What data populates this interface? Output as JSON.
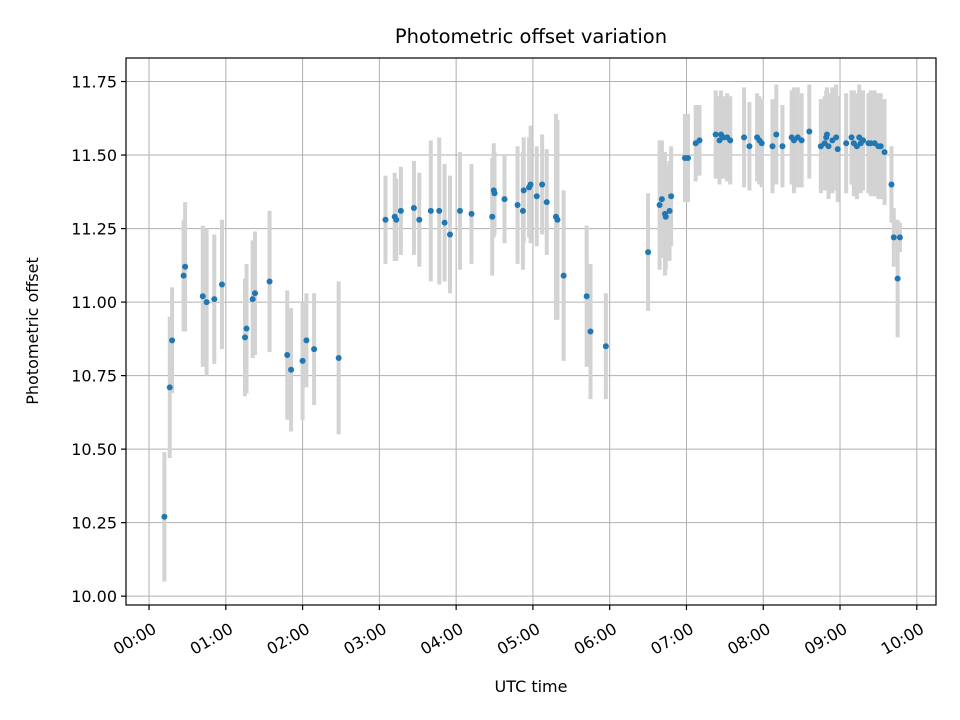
{
  "chart_data": {
    "type": "scatter",
    "title": "Photometric offset variation",
    "xlabel": "UTC time",
    "ylabel": "Photometric offset",
    "x_unit": "hours",
    "xlim": [
      -0.3,
      10.25
    ],
    "ylim": [
      9.97,
      11.83
    ],
    "x_ticks": [
      0,
      1,
      2,
      3,
      4,
      5,
      6,
      7,
      8,
      9,
      10
    ],
    "x_tick_labels": [
      "00:00",
      "01:00",
      "02:00",
      "03:00",
      "04:00",
      "05:00",
      "06:00",
      "07:00",
      "08:00",
      "09:00",
      "10:00"
    ],
    "y_ticks": [
      10.0,
      10.25,
      10.5,
      10.75,
      11.0,
      11.25,
      11.5,
      11.75
    ],
    "y_tick_labels": [
      "10.00",
      "10.25",
      "10.50",
      "10.75",
      "11.00",
      "11.25",
      "11.50",
      "11.75"
    ],
    "grid": true,
    "point_color": "#1f77b4",
    "errorbar_color": "#d3d3d3",
    "series": [
      {
        "x": [
          0.2,
          0.27,
          0.3,
          0.45,
          0.47,
          0.7,
          0.75,
          0.85,
          0.95,
          1.25,
          1.27,
          1.35,
          1.38,
          1.57,
          1.8,
          1.85,
          2.0,
          2.05,
          2.15,
          2.47,
          3.08,
          3.2,
          3.22,
          3.28,
          3.45,
          3.52,
          3.67,
          3.78,
          3.85,
          3.92,
          4.05,
          4.2,
          4.47,
          4.49,
          4.5,
          4.63,
          4.8,
          4.87,
          4.88,
          4.95,
          4.97,
          5.05,
          5.12,
          5.18,
          5.3,
          5.32,
          5.4,
          5.7,
          5.75,
          5.95,
          6.5,
          6.65,
          6.68,
          6.72,
          6.73,
          6.78,
          6.8,
          6.98,
          7.02,
          7.12,
          7.17,
          7.38,
          7.43,
          7.45,
          7.48,
          7.53,
          7.57,
          7.75,
          7.82,
          7.92,
          7.95,
          7.98,
          8.12,
          8.17,
          8.25,
          8.37,
          8.4,
          8.45,
          8.5,
          8.6,
          8.75,
          8.8,
          8.82,
          8.83,
          8.85,
          8.9,
          8.95,
          8.97,
          9.08,
          9.15,
          9.18,
          9.22,
          9.25,
          9.27,
          9.3,
          9.37,
          9.4,
          9.45,
          9.5,
          9.53,
          9.58,
          9.67,
          9.7,
          9.75,
          9.78
        ],
        "y": [
          10.27,
          10.71,
          10.87,
          11.09,
          11.12,
          11.02,
          11.0,
          11.01,
          11.06,
          10.88,
          10.91,
          11.01,
          11.03,
          11.07,
          10.82,
          10.77,
          10.8,
          10.87,
          10.84,
          10.81,
          11.28,
          11.29,
          11.28,
          11.31,
          11.32,
          11.28,
          11.31,
          11.31,
          11.27,
          11.23,
          11.31,
          11.3,
          11.29,
          11.38,
          11.37,
          11.35,
          11.33,
          11.31,
          11.38,
          11.39,
          11.4,
          11.36,
          11.4,
          11.34,
          11.29,
          11.28,
          11.09,
          11.02,
          10.9,
          10.85,
          11.17,
          11.33,
          11.35,
          11.3,
          11.29,
          11.31,
          11.36,
          11.49,
          11.49,
          11.54,
          11.55,
          11.57,
          11.55,
          11.57,
          11.56,
          11.56,
          11.55,
          11.56,
          11.53,
          11.56,
          11.55,
          11.54,
          11.53,
          11.57,
          11.53,
          11.56,
          11.55,
          11.56,
          11.55,
          11.58,
          11.53,
          11.54,
          11.56,
          11.57,
          11.53,
          11.55,
          11.56,
          11.52,
          11.54,
          11.56,
          11.54,
          11.53,
          11.56,
          11.54,
          11.55,
          11.54,
          11.54,
          11.54,
          11.53,
          11.53,
          11.51,
          11.4,
          11.22,
          11.08,
          11.22
        ],
        "yerr": [
          0.22,
          0.24,
          0.18,
          0.19,
          0.22,
          0.24,
          0.25,
          0.22,
          0.22,
          0.2,
          0.22,
          0.2,
          0.21,
          0.24,
          0.22,
          0.21,
          0.2,
          0.16,
          0.19,
          0.26,
          0.15,
          0.15,
          0.14,
          0.15,
          0.16,
          0.16,
          0.24,
          0.25,
          0.2,
          0.2,
          0.2,
          0.17,
          0.2,
          0.16,
          0.14,
          0.15,
          0.2,
          0.2,
          0.18,
          0.17,
          0.2,
          0.17,
          0.17,
          0.18,
          0.35,
          0.34,
          0.29,
          0.24,
          0.23,
          0.18,
          0.2,
          0.22,
          0.2,
          0.21,
          0.18,
          0.17,
          0.17,
          0.15,
          0.15,
          0.13,
          0.12,
          0.15,
          0.15,
          0.15,
          0.14,
          0.15,
          0.15,
          0.17,
          0.15,
          0.15,
          0.15,
          0.15,
          0.16,
          0.17,
          0.14,
          0.16,
          0.18,
          0.17,
          0.16,
          0.16,
          0.16,
          0.16,
          0.16,
          0.16,
          0.18,
          0.18,
          0.18,
          0.18,
          0.17,
          0.16,
          0.18,
          0.18,
          0.18,
          0.17,
          0.17,
          0.17,
          0.18,
          0.18,
          0.18,
          0.18,
          0.18,
          0.13,
          0.1,
          0.2,
          0.05
        ]
      }
    ]
  }
}
